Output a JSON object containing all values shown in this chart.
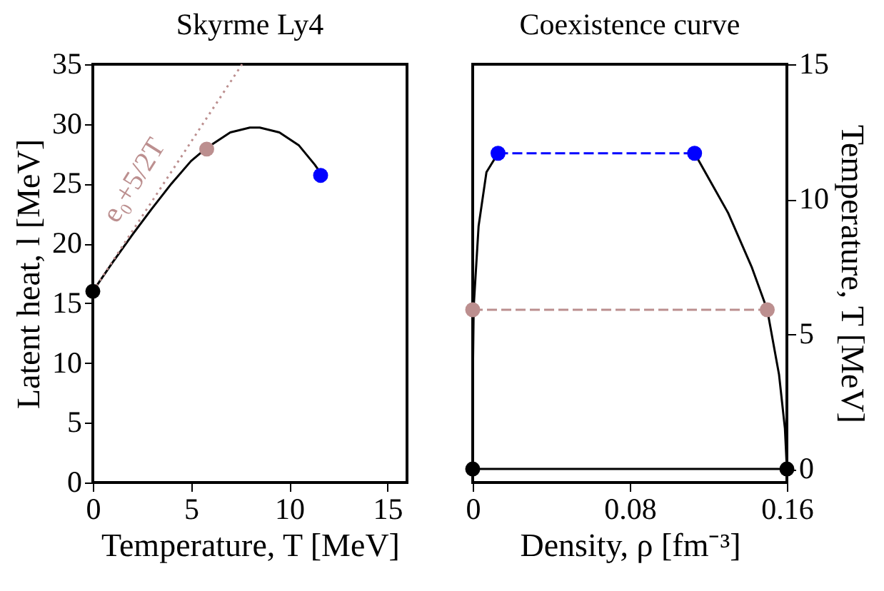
{
  "chart_data": [
    {
      "type": "line",
      "title": "Skyrme Ly4",
      "xlabel": "Temperature, T [MeV]",
      "ylabel": "Latent heat, l [MeV]",
      "xlim": [
        0,
        16
      ],
      "xticks": [
        0,
        5,
        10,
        15
      ],
      "ylim": [
        0,
        35
      ],
      "yticks": [
        0,
        5,
        10,
        15,
        20,
        25,
        30,
        35
      ],
      "grid": false,
      "series": [
        {
          "color": "#000000",
          "x": [
            0,
            1,
            2,
            3,
            4,
            5,
            5.8,
            7,
            8,
            8.5,
            9.5,
            10.5,
            11.3,
            11.6
          ],
          "values": [
            16,
            18.4,
            20.7,
            22.9,
            25,
            26.9,
            28,
            29.3,
            29.7,
            29.7,
            29.3,
            28.2,
            26.6,
            25.9
          ]
        },
        {
          "color": "#bc8f8f",
          "line_style": "dotted",
          "x": [
            0,
            7.6
          ],
          "values": [
            16,
            35
          ]
        },
        {
          "type": "scatter",
          "marker": "circle",
          "color": "#000000",
          "x": [
            0
          ],
          "values": [
            16
          ]
        },
        {
          "type": "scatter",
          "marker": "circle",
          "color": "#bc8f8f",
          "x": [
            5.8
          ],
          "values": [
            27.9
          ]
        },
        {
          "type": "scatter",
          "marker": "circle",
          "color": "#0000ff",
          "x": [
            11.6
          ],
          "values": [
            25.7
          ]
        }
      ],
      "annotations": [
        {
          "text": "e₀+5/2T",
          "x": 3.2,
          "y": 25
        }
      ]
    },
    {
      "type": "line",
      "title": "Coexistence curve",
      "xlabel": "Density, ρ [fm⁻³]",
      "y2label": "Temperature, T [MeV]",
      "xlim": [
        0,
        0.16
      ],
      "xticks": [
        0,
        0.08,
        0.16
      ],
      "y2lim": [
        -0.5,
        15
      ],
      "y2ticks": [
        0,
        5,
        10,
        15
      ],
      "grid": false,
      "series": [
        {
          "axis": "y2",
          "color": "#000000",
          "x": [
            0.0129,
            0.007,
            0.003,
            0.0005,
            0,
            0,
            0.16,
            0.159,
            0.156,
            0.15,
            0.142,
            0.13,
            0.113
          ],
          "values": [
            11.7,
            11,
            9,
            6,
            3,
            0,
            0,
            1.5,
            3.5,
            5.9,
            7.5,
            9.5,
            11.7
          ]
        },
        {
          "axis": "y2",
          "color": "#0000ff",
          "line_style": "dashed",
          "marker": "circle",
          "x": [
            0.0129,
            0.113
          ],
          "values": [
            11.7,
            11.7
          ]
        },
        {
          "axis": "y2",
          "color": "#bc8f8f",
          "line_style": "dashed",
          "marker": "circle",
          "x": [
            0,
            0.15
          ],
          "values": [
            5.9,
            5.9
          ]
        },
        {
          "axis": "y2",
          "type": "scatter",
          "marker": "circle",
          "color": "#000000",
          "x": [
            0,
            0.16
          ],
          "values": [
            0,
            0
          ]
        }
      ]
    }
  ]
}
